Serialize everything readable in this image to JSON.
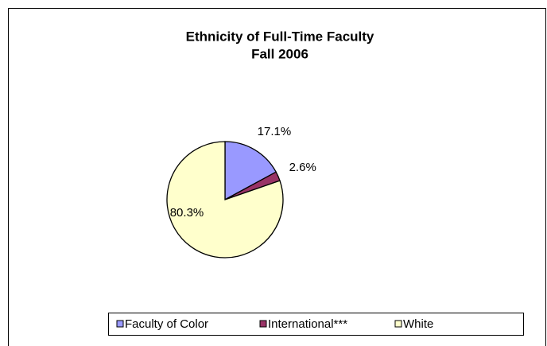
{
  "chart_data": {
    "type": "pie",
    "title": "Ethnicity of Full-Time Faculty",
    "subtitle": "Fall 2006",
    "categories": [
      "Faculty of Color",
      "International***",
      "White"
    ],
    "values": [
      17.1,
      2.6,
      80.3
    ],
    "value_labels": [
      "17.1%",
      "2.6%",
      "80.3%"
    ],
    "colors": [
      "#9999ff",
      "#993366",
      "#ffffcc"
    ],
    "legend": "bottom"
  }
}
